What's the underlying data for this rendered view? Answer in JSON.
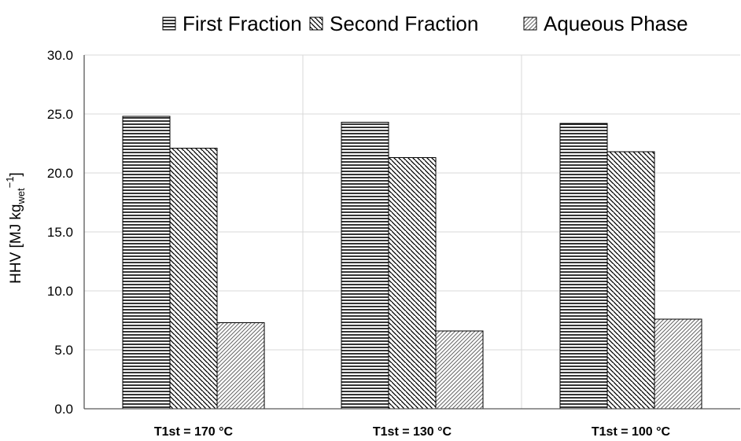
{
  "chart_data": {
    "type": "bar",
    "categories": [
      "T1st = 170 °C",
      "T1st = 130 °C",
      "T1st = 100 °C"
    ],
    "series": [
      {
        "name": "First Fraction",
        "values": [
          24.8,
          24.3,
          24.2
        ],
        "pattern": "horizontal-lines"
      },
      {
        "name": "Second Fraction",
        "values": [
          22.1,
          21.3,
          21.8
        ],
        "pattern": "diagonal-dense"
      },
      {
        "name": "Aqueous Phase",
        "values": [
          7.3,
          6.6,
          7.6
        ],
        "pattern": "diagonal-light"
      }
    ],
    "ylabel_main": "HHV [MJ kg",
    "ylabel_sub": "wet",
    "ylabel_sup": "−1",
    "ylabel_close": "]",
    "ylim": [
      0,
      30
    ],
    "yticks": [
      "0.0",
      "5.0",
      "10.0",
      "15.0",
      "20.0",
      "25.0",
      "30.0"
    ],
    "legend_position": "top",
    "grid": "y-major",
    "colors": {
      "grid": "#d9d9d9",
      "axis": "#595959",
      "bar_stroke": "#000000"
    }
  }
}
